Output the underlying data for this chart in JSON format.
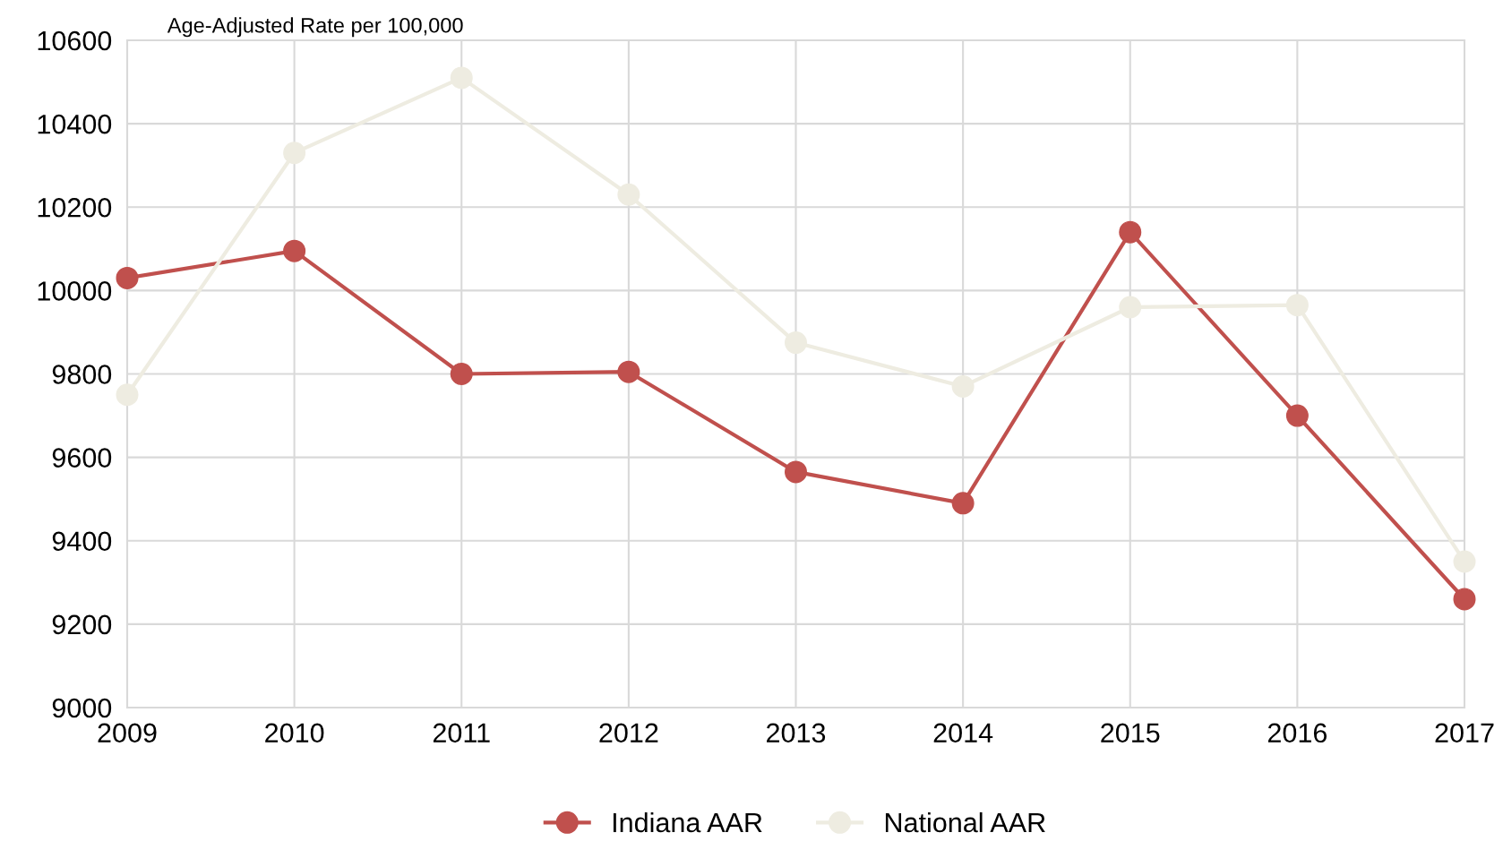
{
  "chart_data": {
    "type": "line",
    "ylabel": "Age-Adjusted Rate per 100,000",
    "categories": [
      "2009",
      "2010",
      "2011",
      "2012",
      "2013",
      "2014",
      "2015",
      "2016",
      "2017"
    ],
    "series": [
      {
        "name": "Indiana AAR",
        "color": "#c0504d",
        "values": [
          10030,
          10095,
          9800,
          9805,
          9565,
          9490,
          10140,
          9700,
          9260
        ]
      },
      {
        "name": "National AAR",
        "color": "#eeece1",
        "values": [
          9750,
          10330,
          10510,
          10230,
          9875,
          9770,
          9960,
          9965,
          9350
        ]
      }
    ],
    "ylim": [
      9000,
      10600
    ],
    "yticks": [
      9000,
      9200,
      9400,
      9600,
      9800,
      10000,
      10200,
      10400,
      10600
    ],
    "grid": true,
    "legend": "bottom",
    "marker": "circle",
    "line_style": "solid"
  }
}
